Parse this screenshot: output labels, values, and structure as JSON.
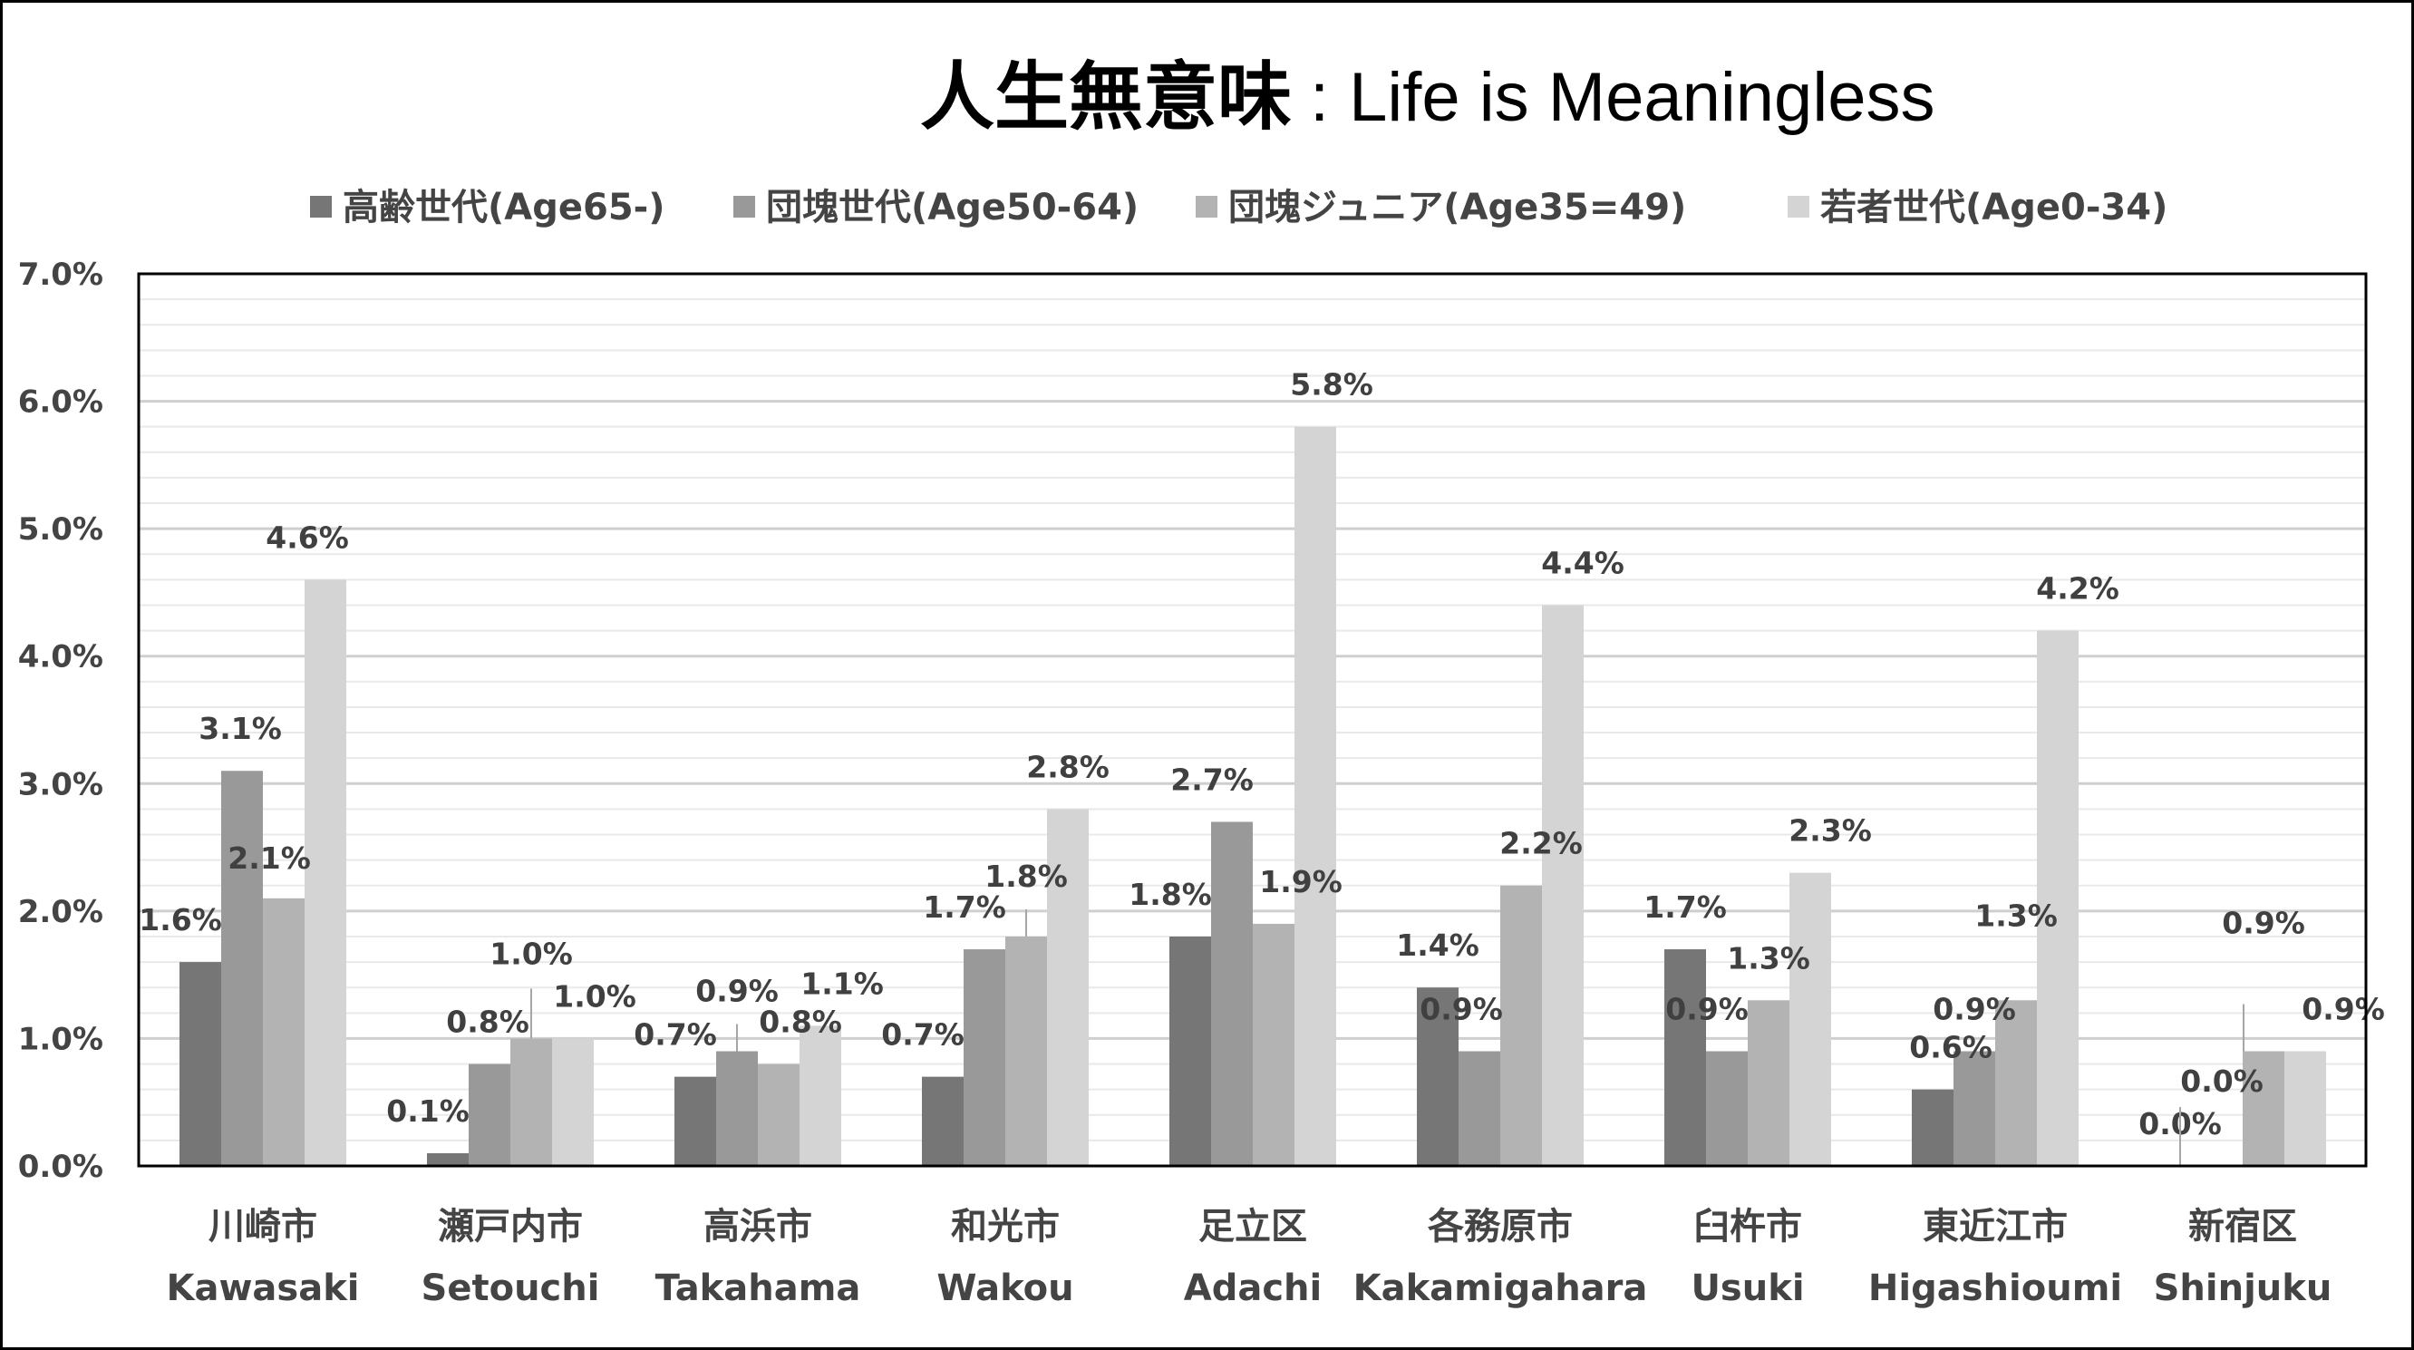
{
  "chart_data": {
    "type": "bar",
    "title": "人生無意味",
    "title_sep": ":",
    "subtitle": "Life is Meaningless",
    "categories": [
      {
        "jp": "川崎市",
        "en": "Kawasaki"
      },
      {
        "jp": "瀬戸内市",
        "en": "Setouchi"
      },
      {
        "jp": "高浜市",
        "en": "Takahama"
      },
      {
        "jp": "和光市",
        "en": "Wakou"
      },
      {
        "jp": "足立区",
        "en": "Adachi"
      },
      {
        "jp": "各務原市",
        "en": "Kakamigahara"
      },
      {
        "jp": "臼杵市",
        "en": "Usuki"
      },
      {
        "jp": "東近江市",
        "en": "Higashioumi"
      },
      {
        "jp": "新宿区",
        "en": "Shinjuku"
      }
    ],
    "series": [
      {
        "name": "高齢世代(Age65-)",
        "color": "#767676",
        "values": [
          1.6,
          0.1,
          0.7,
          0.7,
          1.8,
          1.4,
          1.7,
          0.6,
          0.0
        ]
      },
      {
        "name": "団塊世代(Age50-64)",
        "color": "#999999",
        "values": [
          3.1,
          0.8,
          0.9,
          1.7,
          2.7,
          0.9,
          0.9,
          0.9,
          0.0
        ]
      },
      {
        "name": "団塊ジュニア(Age35=49)",
        "color": "#b3b3b3",
        "values": [
          2.1,
          1.0,
          0.8,
          1.8,
          1.9,
          2.2,
          1.3,
          1.3,
          0.9
        ]
      },
      {
        "name": "若者世代(Age0-34)",
        "color": "#d4d4d4",
        "values": [
          4.6,
          1.0,
          1.1,
          2.8,
          5.8,
          4.4,
          2.3,
          4.2,
          0.9
        ]
      }
    ],
    "data_labels": [
      [
        "1.6%",
        "3.1%",
        "2.1%",
        "4.6%"
      ],
      [
        "0.1%",
        "0.8%",
        "1.0%",
        "1.0%"
      ],
      [
        "0.7%",
        "0.9%",
        "0.8%",
        "1.1%"
      ],
      [
        "0.7%",
        "1.7%",
        "1.8%",
        "2.8%"
      ],
      [
        "1.8%",
        "2.7%",
        "1.9%",
        "5.8%"
      ],
      [
        "1.4%",
        "0.9%",
        "2.2%",
        "4.4%"
      ],
      [
        "1.7%",
        "0.9%",
        "1.3%",
        "2.3%"
      ],
      [
        "0.6%",
        "0.9%",
        "1.3%",
        "4.2%"
      ],
      [
        "0.0%",
        "0.0%",
        "0.9%",
        "0.9%"
      ]
    ],
    "yticks": [
      "0.0%",
      "1.0%",
      "2.0%",
      "3.0%",
      "4.0%",
      "5.0%",
      "6.0%",
      "7.0%"
    ],
    "ylim": [
      0,
      7
    ],
    "unit": "%",
    "legend_position": "top",
    "grid": true
  }
}
